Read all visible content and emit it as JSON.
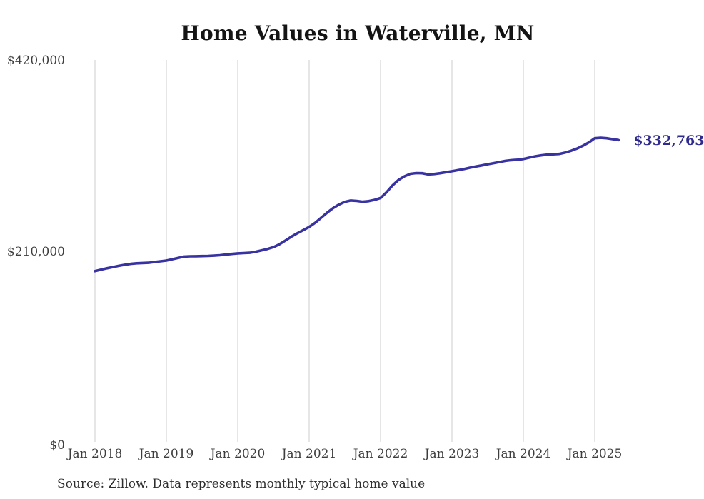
{
  "page": {
    "background": "#ffffff"
  },
  "chart_data": {
    "type": "line",
    "title": "Home Values in Waterville, MN",
    "series_name": "Monthly typical home value",
    "unit": "USD",
    "frequency": "monthly",
    "x_start": "Jan 2018",
    "x_end": "May 2025",
    "x_tick_labels": [
      "Jan 2018",
      "Jan 2019",
      "Jan 2020",
      "Jan 2021",
      "Jan 2022",
      "Jan 2023",
      "Jan 2024",
      "Jan 2025"
    ],
    "y_ticks": [
      {
        "value": 0,
        "label": "$0"
      },
      {
        "value": 210000,
        "label": "$210,000"
      },
      {
        "value": 420000,
        "label": "$420,000"
      }
    ],
    "ylim": [
      0,
      420000
    ],
    "grid": "vertical-only",
    "legend": "none",
    "values": [
      189000,
      190600,
      192100,
      193500,
      194800,
      196000,
      197000,
      197600,
      197900,
      198200,
      199000,
      199800,
      200600,
      202100,
      203600,
      205000,
      205300,
      205400,
      205500,
      205700,
      206000,
      206500,
      207200,
      207900,
      208500,
      208800,
      209100,
      210300,
      211800,
      213400,
      215300,
      218500,
      222500,
      226800,
      230500,
      234000,
      237500,
      242000,
      247500,
      253000,
      258000,
      262000,
      265000,
      266500,
      266000,
      265200,
      265800,
      267200,
      269200,
      275500,
      283000,
      289000,
      293000,
      295800,
      296600,
      296400,
      295200,
      295600,
      296400,
      297500,
      298600,
      299800,
      301000,
      302500,
      303800,
      305000,
      306300,
      307500,
      308700,
      310000,
      310800,
      311200,
      312000,
      313500,
      315000,
      316000,
      316800,
      317200,
      317600,
      319000,
      321000,
      323500,
      326500,
      330200,
      334800,
      335300,
      334800,
      333800,
      332763
    ],
    "latest_value": 332763,
    "latest_value_label": "$332,763",
    "source_note": "Source: Zillow. Data represents monthly typical home value",
    "line_color": "#3833a1",
    "end_label_color": "#2e2a8e",
    "grid_color": "#cccccc",
    "axis_text_color": "#3d3d3d",
    "title_color": "#141414"
  }
}
